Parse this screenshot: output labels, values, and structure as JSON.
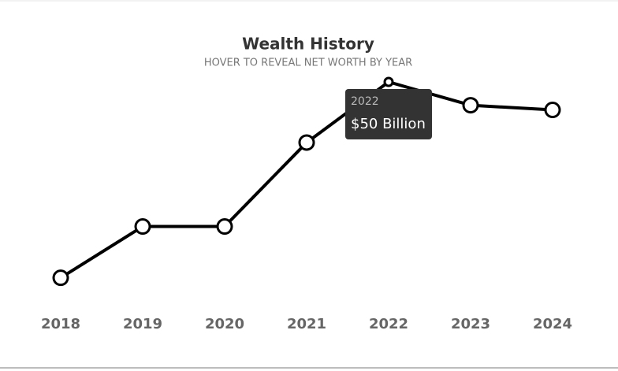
{
  "chart_data": {
    "type": "line",
    "title": "Wealth History",
    "subtitle": "HOVER TO REVEAL NET WORTH BY YEAR",
    "categories": [
      "2018",
      "2019",
      "2020",
      "2021",
      "2022",
      "2023",
      "2024"
    ],
    "values": [
      8,
      19,
      19,
      37,
      50,
      45,
      44
    ],
    "value_labels": [
      null,
      null,
      null,
      null,
      "$50 Billion",
      null,
      null
    ],
    "color": "#000000",
    "ylim": [
      0,
      50
    ]
  }
}
